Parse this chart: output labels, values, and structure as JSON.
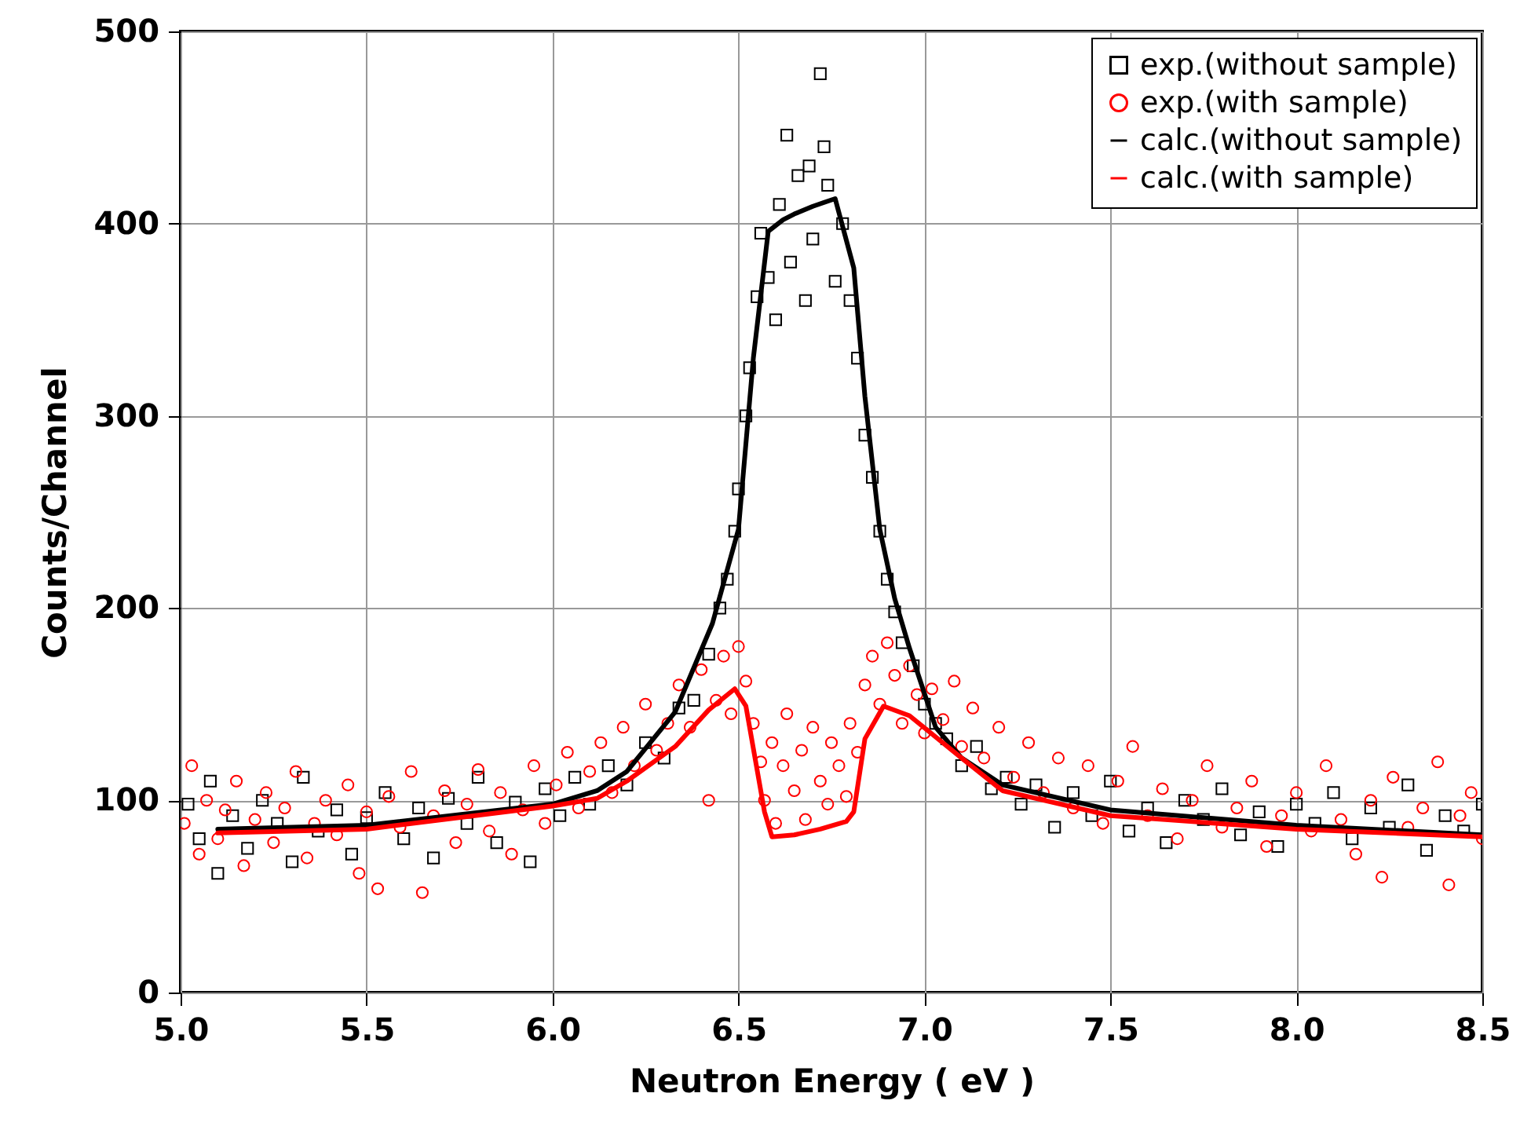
{
  "chart_data": {
    "type": "scatter",
    "xlabel": "Neutron Energy ( eV )",
    "ylabel": "Counts/Channel",
    "xlim": [
      5,
      8.5
    ],
    "ylim": [
      0,
      500
    ],
    "xticks": [
      {
        "value": 5,
        "label": "5.0"
      },
      5.5,
      {
        "value": 6,
        "label": "6.0"
      },
      6.5,
      {
        "value": 7,
        "label": "7.0"
      },
      7.5,
      {
        "value": 8,
        "label": "8.0"
      },
      8.5
    ],
    "yticks": [
      0,
      100,
      200,
      300,
      400,
      500
    ],
    "grid": true,
    "legend": "top right",
    "series": [
      {
        "name": "exp.(without sample)",
        "marker": "square",
        "color": "#000000",
        "x": [
          5.02,
          5.05,
          5.08,
          5.1,
          5.14,
          5.18,
          5.22,
          5.26,
          5.3,
          5.33,
          5.37,
          5.42,
          5.46,
          5.5,
          5.55,
          5.6,
          5.64,
          5.68,
          5.72,
          5.77,
          5.8,
          5.85,
          5.9,
          5.94,
          5.98,
          6.02,
          6.06,
          6.1,
          6.15,
          6.2,
          6.25,
          6.3,
          6.34,
          6.38,
          6.42,
          6.45,
          6.47,
          6.49,
          6.5,
          6.52,
          6.53,
          6.55,
          6.56,
          6.58,
          6.6,
          6.61,
          6.63,
          6.64,
          6.66,
          6.68,
          6.69,
          6.7,
          6.72,
          6.73,
          6.74,
          6.76,
          6.78,
          6.8,
          6.82,
          6.84,
          6.86,
          6.88,
          6.9,
          6.92,
          6.94,
          6.97,
          7.0,
          7.03,
          7.06,
          7.1,
          7.14,
          7.18,
          7.22,
          7.26,
          7.3,
          7.35,
          7.4,
          7.45,
          7.5,
          7.55,
          7.6,
          7.65,
          7.7,
          7.75,
          7.8,
          7.85,
          7.9,
          7.95,
          8.0,
          8.05,
          8.1,
          8.15,
          8.2,
          8.25,
          8.3,
          8.35,
          8.4,
          8.45,
          8.5
        ],
        "values": [
          98,
          80,
          110,
          62,
          92,
          75,
          100,
          88,
          68,
          112,
          84,
          95,
          72,
          91,
          104,
          80,
          96,
          70,
          101,
          88,
          112,
          78,
          99,
          68,
          106,
          92,
          112,
          98,
          118,
          108,
          130,
          122,
          148,
          152,
          176,
          200,
          215,
          240,
          262,
          300,
          325,
          362,
          395,
          372,
          350,
          410,
          446,
          380,
          425,
          360,
          430,
          392,
          478,
          440,
          420,
          370,
          400,
          360,
          330,
          290,
          268,
          240,
          215,
          198,
          182,
          170,
          150,
          140,
          132,
          118,
          128,
          106,
          112,
          98,
          108,
          86,
          104,
          92,
          110,
          84,
          96,
          78,
          100,
          90,
          106,
          82,
          94,
          76,
          98,
          88,
          104,
          80,
          96,
          86,
          108,
          74,
          92,
          84,
          98
        ]
      },
      {
        "name": "exp.(with sample)",
        "marker": "circle",
        "color": "#ff0000",
        "x": [
          5.01,
          5.03,
          5.05,
          5.07,
          5.1,
          5.12,
          5.15,
          5.17,
          5.2,
          5.23,
          5.25,
          5.28,
          5.31,
          5.34,
          5.36,
          5.39,
          5.42,
          5.45,
          5.48,
          5.5,
          5.53,
          5.56,
          5.59,
          5.62,
          5.65,
          5.68,
          5.71,
          5.74,
          5.77,
          5.8,
          5.83,
          5.86,
          5.89,
          5.92,
          5.95,
          5.98,
          6.01,
          6.04,
          6.07,
          6.1,
          6.13,
          6.16,
          6.19,
          6.22,
          6.25,
          6.28,
          6.31,
          6.34,
          6.37,
          6.4,
          6.42,
          6.44,
          6.46,
          6.48,
          6.5,
          6.52,
          6.54,
          6.56,
          6.57,
          6.59,
          6.6,
          6.62,
          6.63,
          6.65,
          6.67,
          6.68,
          6.7,
          6.72,
          6.74,
          6.75,
          6.77,
          6.79,
          6.8,
          6.82,
          6.84,
          6.86,
          6.88,
          6.9,
          6.92,
          6.94,
          6.96,
          6.98,
          7.0,
          7.02,
          7.05,
          7.08,
          7.1,
          7.13,
          7.16,
          7.2,
          7.24,
          7.28,
          7.32,
          7.36,
          7.4,
          7.44,
          7.48,
          7.52,
          7.56,
          7.6,
          7.64,
          7.68,
          7.72,
          7.76,
          7.8,
          7.84,
          7.88,
          7.92,
          7.96,
          8.0,
          8.04,
          8.08,
          8.12,
          8.16,
          8.2,
          8.23,
          8.26,
          8.3,
          8.34,
          8.38,
          8.41,
          8.44,
          8.47,
          8.5
        ],
        "values": [
          88,
          118,
          72,
          100,
          80,
          95,
          110,
          66,
          90,
          104,
          78,
          96,
          115,
          70,
          88,
          100,
          82,
          108,
          62,
          94,
          54,
          102,
          86,
          115,
          52,
          92,
          105,
          78,
          98,
          116,
          84,
          104,
          72,
          95,
          118,
          88,
          108,
          125,
          96,
          115,
          130,
          104,
          138,
          118,
          150,
          126,
          140,
          160,
          138,
          168,
          100,
          152,
          175,
          145,
          180,
          162,
          140,
          120,
          100,
          130,
          88,
          118,
          145,
          105,
          126,
          90,
          138,
          110,
          98,
          130,
          118,
          102,
          140,
          125,
          160,
          175,
          150,
          182,
          165,
          140,
          170,
          155,
          135,
          158,
          142,
          162,
          128,
          148,
          122,
          138,
          112,
          130,
          104,
          122,
          96,
          118,
          88,
          110,
          128,
          92,
          106,
          80,
          100,
          118,
          86,
          96,
          110,
          76,
          92,
          104,
          84,
          118,
          90,
          72,
          100,
          60,
          112,
          86,
          96,
          120,
          56,
          92,
          104,
          80
        ]
      },
      {
        "name": "calc.(without sample)",
        "type": "line",
        "color": "#000000",
        "x": [
          5.1,
          5.5,
          6.0,
          6.12,
          6.2,
          6.33,
          6.43,
          6.5,
          6.54,
          6.58,
          6.62,
          6.65,
          6.7,
          6.76,
          6.81,
          6.84,
          6.88,
          6.92,
          6.96,
          7.03,
          7.1,
          7.21,
          7.5,
          8.0,
          8.5
        ],
        "values": [
          85,
          87,
          98,
          105,
          115,
          146,
          192,
          241,
          330,
          396,
          402,
          405,
          409,
          413,
          377,
          310,
          241,
          205,
          179,
          138,
          122,
          108,
          95,
          87,
          82
        ]
      },
      {
        "name": "calc.(with sample)",
        "type": "line",
        "color": "#ff0000",
        "x": [
          5.1,
          5.5,
          6.0,
          6.12,
          6.2,
          6.33,
          6.42,
          6.49,
          6.52,
          6.57,
          6.59,
          6.65,
          6.72,
          6.79,
          6.81,
          6.84,
          6.89,
          6.96,
          7.1,
          7.21,
          7.5,
          8.0,
          8.5
        ],
        "values": [
          83,
          85,
          97,
          101,
          110,
          128,
          147,
          158,
          149,
          94,
          81,
          82,
          85,
          89,
          94,
          132,
          149,
          144,
          122,
          105,
          92,
          85,
          81
        ]
      }
    ]
  }
}
